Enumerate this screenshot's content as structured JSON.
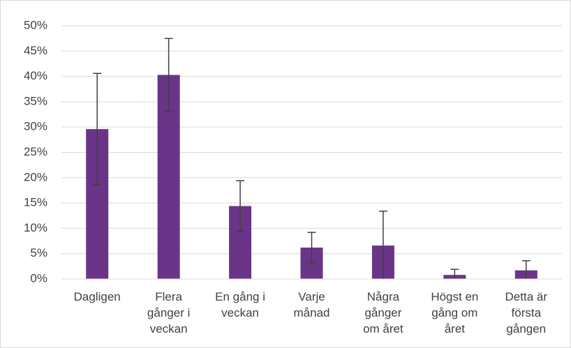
{
  "chart_data": {
    "type": "bar",
    "categories": [
      "Dagligen",
      "Flera\ngånger i\nveckan",
      "En gång i\nveckan",
      "Varje\nmånad",
      "Några\ngånger\nom året",
      "Högst en\ngång om\nåret",
      "Detta är\nförsta\ngången"
    ],
    "values": [
      29.6,
      40.3,
      14.4,
      6.2,
      6.6,
      0.8,
      1.7
    ],
    "errors": [
      11,
      7.2,
      5,
      3,
      6.8,
      1.1,
      1.9
    ],
    "color": "#6a3589",
    "ylim": [
      0,
      50
    ],
    "yticks": [
      {
        "value": 0,
        "label": "0%"
      },
      {
        "value": 5,
        "label": "5%"
      },
      {
        "value": 10,
        "label": "10%"
      },
      {
        "value": 15,
        "label": "15%"
      },
      {
        "value": 20,
        "label": "20%"
      },
      {
        "value": 25,
        "label": "25%"
      },
      {
        "value": 30,
        "label": "30%"
      },
      {
        "value": 35,
        "label": "35%"
      },
      {
        "value": 40,
        "label": "40%"
      },
      {
        "value": 45,
        "label": "45%"
      },
      {
        "value": 50,
        "label": "50%"
      }
    ],
    "grid": true
  }
}
